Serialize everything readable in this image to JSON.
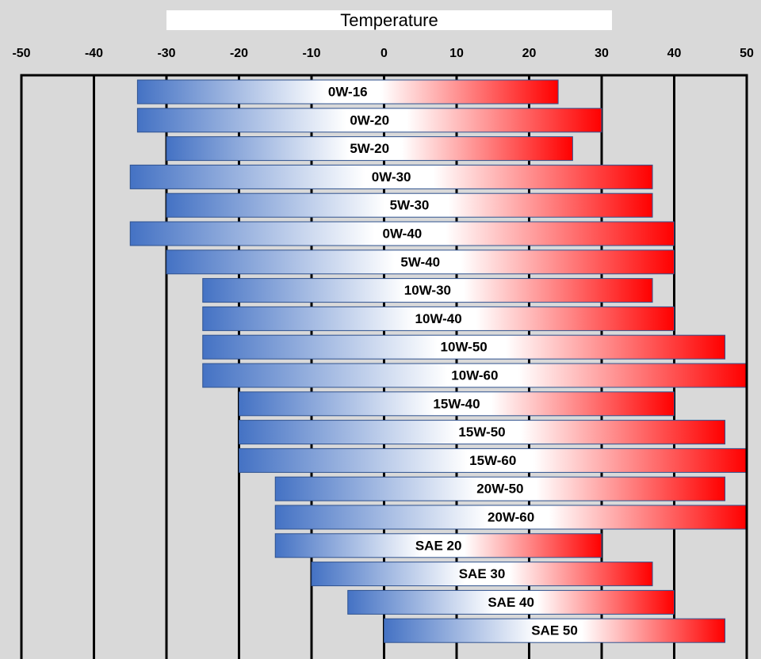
{
  "chart_data": {
    "type": "range-bar",
    "title": "Temperature",
    "categories": [
      "0W-16",
      "0W-20",
      "5W-20",
      "0W-30",
      "5W-30",
      "0W-40",
      "5W-40",
      "10W-30",
      "10W-40",
      "10W-50",
      "10W-60",
      "15W-40",
      "15W-50",
      "15W-60",
      "20W-50",
      "20W-60",
      "SAE 20",
      "SAE 30",
      "SAE 40",
      "SAE 50"
    ],
    "starts": [
      -34,
      -34,
      -30,
      -35,
      -30,
      -35,
      -30,
      -25,
      -25,
      -25,
      -25,
      -20,
      -20,
      -20,
      -15,
      -15,
      -15,
      -10,
      -5,
      0
    ],
    "ends": [
      24,
      30,
      26,
      37,
      37,
      40,
      40,
      37,
      40,
      47,
      50,
      40,
      47,
      50,
      47,
      50,
      30,
      37,
      40,
      47
    ],
    "xlim": [
      -50,
      50
    ],
    "xticks": [
      -50,
      -40,
      -30,
      -20,
      -10,
      0,
      10,
      20,
      30,
      40,
      50
    ],
    "grid": true
  }
}
